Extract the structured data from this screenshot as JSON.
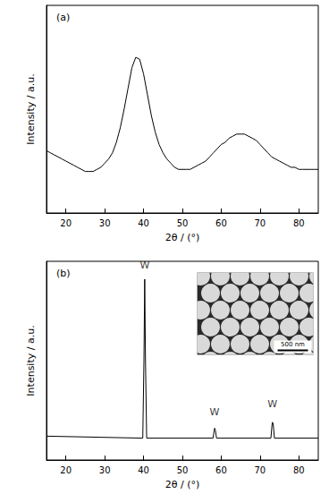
{
  "chart_data": [
    {
      "type": "line",
      "title": "(a)",
      "x_label": "2θ / (°)",
      "y_label": "Intensity / a.u.",
      "color": "#000000",
      "tick_labels": "x",
      "grid": false,
      "xlim": [
        15,
        85
      ],
      "xticks": [
        20,
        30,
        40,
        50,
        60,
        70,
        80
      ],
      "ylim": [
        0,
        100
      ],
      "x": [
        15,
        16,
        17,
        18,
        19,
        20,
        21,
        22,
        23,
        24,
        25,
        26,
        27,
        28,
        29,
        30,
        31,
        32,
        33,
        34,
        35,
        36,
        37,
        38,
        39,
        40,
        41,
        42,
        43,
        44,
        45,
        46,
        47,
        48,
        49,
        50,
        51,
        52,
        53,
        54,
        55,
        56,
        57,
        58,
        59,
        60,
        61,
        62,
        63,
        64,
        65,
        66,
        67,
        68,
        69,
        70,
        71,
        72,
        73,
        74,
        75,
        76,
        77,
        78,
        79,
        80,
        81,
        82,
        83,
        84,
        85
      ],
      "values": [
        30,
        29,
        28,
        27,
        26,
        25,
        24,
        23,
        22,
        21,
        20,
        20,
        20,
        21,
        22,
        24,
        26,
        29,
        34,
        41,
        50,
        60,
        70,
        75,
        74,
        67,
        57,
        47,
        39,
        33,
        29,
        26,
        24,
        22,
        21,
        21,
        21,
        21,
        22,
        23,
        24,
        25,
        27,
        29,
        31,
        33,
        34,
        36,
        37,
        38,
        38,
        38,
        37,
        36,
        35,
        33,
        31,
        29,
        27,
        26,
        25,
        24,
        23,
        22,
        22,
        21,
        21,
        21,
        21,
        21,
        21
      ]
    },
    {
      "type": "line",
      "title": "(b)",
      "x_label": "2θ / (°)",
      "y_label": "Intensity / a.u.",
      "color": "#000000",
      "tick_labels": "x",
      "grid": false,
      "xlim": [
        15,
        85
      ],
      "xticks": [
        20,
        30,
        40,
        50,
        60,
        70,
        80
      ],
      "ylim": [
        0,
        100
      ],
      "x": [
        15,
        39.8,
        40.1,
        40.3,
        40.5,
        40.8,
        57.9,
        58.2,
        58.3,
        58.5,
        58.8,
        72.8,
        73.1,
        73.2,
        73.4,
        73.7,
        85
      ],
      "values": [
        12,
        11,
        50,
        91,
        50,
        11,
        11,
        15,
        16,
        15,
        11,
        11,
        18,
        19,
        18,
        11,
        11
      ],
      "annotations": [
        {
          "text": "W",
          "x": 40.3,
          "y": 98
        },
        {
          "text": "W",
          "x": 58.3,
          "y": 24
        },
        {
          "text": "W",
          "x": 73.2,
          "y": 28
        }
      ],
      "inset_text": "500 nm"
    }
  ]
}
